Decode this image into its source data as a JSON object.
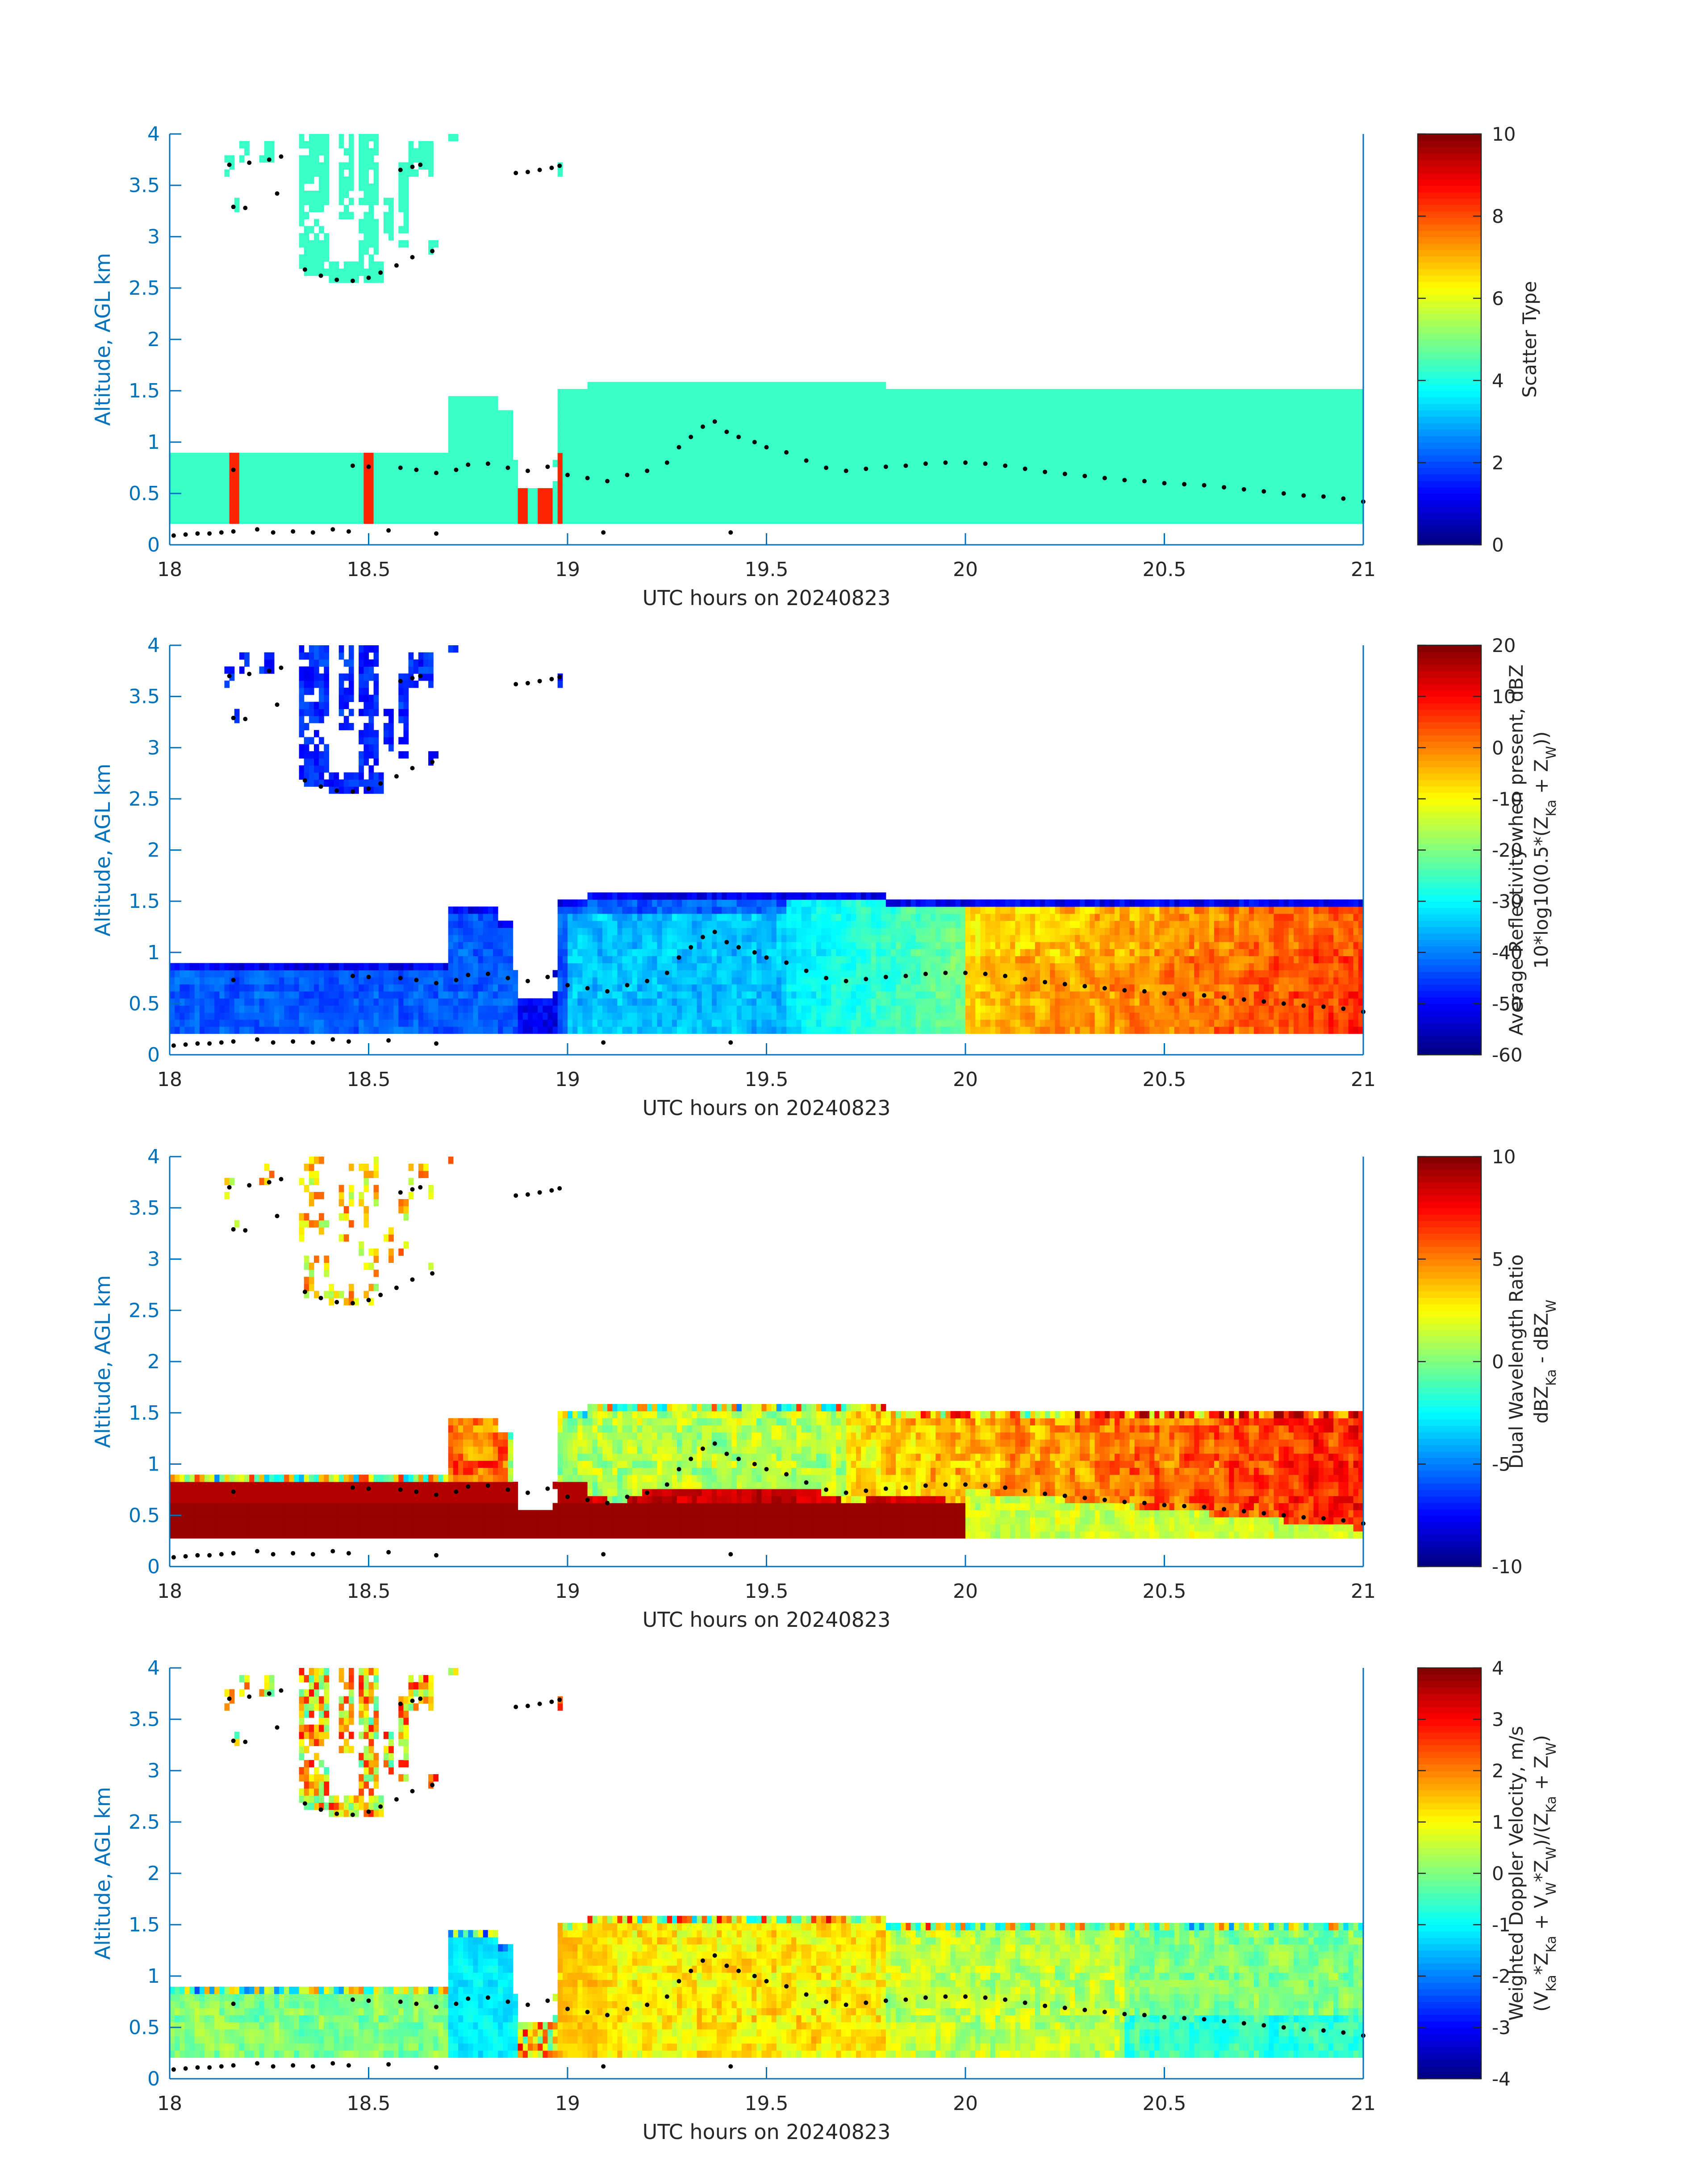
{
  "chart_data": [
    {
      "type": "heatmap",
      "ylabel": "Altitude, AGL km",
      "xlabel": "UTC hours on 20240823",
      "xlim": [
        18,
        21
      ],
      "ylim": [
        0,
        4
      ],
      "xticks": [
        "18",
        "18.5",
        "19",
        "19.5",
        "20",
        "20.5",
        "21"
      ],
      "yticks": [
        "0",
        "0.5",
        "1",
        "1.5",
        "2",
        "2.5",
        "3",
        "3.5",
        "4"
      ],
      "colorbar": {
        "label_lines": [
          "Scatter Type"
        ],
        "lim": [
          0,
          10
        ],
        "ticks": [
          "0",
          "2",
          "4",
          "6",
          "8",
          "10"
        ]
      },
      "colormap": "jet",
      "field": "scatter_type"
    },
    {
      "type": "heatmap",
      "ylabel": "Altitude, AGL km",
      "xlabel": "UTC hours on 20240823",
      "xlim": [
        18,
        21
      ],
      "ylim": [
        0,
        4
      ],
      "xticks": [
        "18",
        "18.5",
        "19",
        "19.5",
        "20",
        "20.5",
        "21"
      ],
      "yticks": [
        "0",
        "0.5",
        "1",
        "1.5",
        "2",
        "2.5",
        "3",
        "3.5",
        "4"
      ],
      "colorbar": {
        "label_lines": [
          "Average Reflectivity when present, dBZ",
          "10*log10(0.5*(Z_Ka + Z_W))"
        ],
        "lim": [
          -60,
          20
        ],
        "ticks": [
          "-60",
          "-50",
          "-40",
          "-30",
          "-20",
          "-10",
          "0",
          "10",
          "20"
        ]
      },
      "colormap": "jet",
      "field": "reflectivity"
    },
    {
      "type": "heatmap",
      "ylabel": "Altitude, AGL km",
      "xlabel": "UTC hours on 20240823",
      "xlim": [
        18,
        21
      ],
      "ylim": [
        0,
        4
      ],
      "xticks": [
        "18",
        "18.5",
        "19",
        "19.5",
        "20",
        "20.5",
        "21"
      ],
      "yticks": [
        "0",
        "0.5",
        "1",
        "1.5",
        "2",
        "2.5",
        "3",
        "3.5",
        "4"
      ],
      "colorbar": {
        "label_lines": [
          "Dual Wavelength Ratio",
          "dBZ_Ka - dBZ_W"
        ],
        "lim": [
          -10,
          10
        ],
        "ticks": [
          "-10",
          "-5",
          "0",
          "5",
          "10"
        ]
      },
      "colormap": "jet",
      "field": "dwr"
    },
    {
      "type": "heatmap",
      "ylabel": "Altitude, AGL km",
      "xlabel": "UTC hours on 20240823",
      "xlim": [
        18,
        21
      ],
      "ylim": [
        0,
        4
      ],
      "xticks": [
        "18",
        "18.5",
        "19",
        "19.5",
        "20",
        "20.5",
        "21"
      ],
      "yticks": [
        "0",
        "0.5",
        "1",
        "1.5",
        "2",
        "2.5",
        "3",
        "3.5",
        "4"
      ],
      "colorbar": {
        "label_lines": [
          "Weighted Doppler Velocity, m/s",
          "(V_Ka*Z_Ka + V_W*Z_W)/(Z_Ka + Z_W)"
        ],
        "lim": [
          -4,
          4
        ],
        "ticks": [
          "-4",
          "-3",
          "-2",
          "-1",
          "0",
          "1",
          "2",
          "3",
          "4"
        ]
      },
      "colormap": "jet",
      "field": "velocity"
    }
  ],
  "cloud_base_dots": [
    [
      18.01,
      0.09
    ],
    [
      18.04,
      0.1
    ],
    [
      18.07,
      0.11
    ],
    [
      18.1,
      0.11
    ],
    [
      18.13,
      0.12
    ],
    [
      18.16,
      0.13
    ],
    [
      18.22,
      0.15
    ],
    [
      18.26,
      0.12
    ],
    [
      18.31,
      0.13
    ],
    [
      18.36,
      0.12
    ],
    [
      18.41,
      0.15
    ],
    [
      18.45,
      0.13
    ],
    [
      18.55,
      0.14
    ],
    [
      18.67,
      0.11
    ],
    [
      19.09,
      0.12
    ],
    [
      19.41,
      0.12
    ],
    [
      18.16,
      0.73
    ],
    [
      18.46,
      0.77
    ],
    [
      18.5,
      0.76
    ],
    [
      18.58,
      0.75
    ],
    [
      18.62,
      0.73
    ],
    [
      18.67,
      0.7
    ],
    [
      18.72,
      0.73
    ],
    [
      18.75,
      0.78
    ],
    [
      18.8,
      0.79
    ],
    [
      18.85,
      0.75
    ],
    [
      18.9,
      0.72
    ],
    [
      18.95,
      0.76
    ],
    [
      19.0,
      0.68
    ],
    [
      19.05,
      0.65
    ],
    [
      19.1,
      0.62
    ],
    [
      19.15,
      0.68
    ],
    [
      19.2,
      0.72
    ],
    [
      19.25,
      0.8
    ],
    [
      19.28,
      0.95
    ],
    [
      19.31,
      1.05
    ],
    [
      19.34,
      1.15
    ],
    [
      19.37,
      1.2
    ],
    [
      19.4,
      1.1
    ],
    [
      19.43,
      1.05
    ],
    [
      19.47,
      1.0
    ],
    [
      19.5,
      0.95
    ],
    [
      19.55,
      0.9
    ],
    [
      19.6,
      0.82
    ],
    [
      19.65,
      0.75
    ],
    [
      19.7,
      0.72
    ],
    [
      19.75,
      0.74
    ],
    [
      19.8,
      0.76
    ],
    [
      19.85,
      0.77
    ],
    [
      19.9,
      0.79
    ],
    [
      19.95,
      0.8
    ],
    [
      20.0,
      0.8
    ],
    [
      20.05,
      0.79
    ],
    [
      20.1,
      0.77
    ],
    [
      20.15,
      0.74
    ],
    [
      20.2,
      0.71
    ],
    [
      20.25,
      0.69
    ],
    [
      20.3,
      0.67
    ],
    [
      20.35,
      0.65
    ],
    [
      20.4,
      0.63
    ],
    [
      20.45,
      0.62
    ],
    [
      20.5,
      0.6
    ],
    [
      20.55,
      0.59
    ],
    [
      20.6,
      0.58
    ],
    [
      20.65,
      0.56
    ],
    [
      20.7,
      0.54
    ],
    [
      20.75,
      0.52
    ],
    [
      20.8,
      0.5
    ],
    [
      20.85,
      0.48
    ],
    [
      20.9,
      0.47
    ],
    [
      20.95,
      0.45
    ],
    [
      21.0,
      0.42
    ],
    [
      18.15,
      3.7
    ],
    [
      18.2,
      3.72
    ],
    [
      18.25,
      3.75
    ],
    [
      18.28,
      3.78
    ],
    [
      18.16,
      3.29
    ],
    [
      18.19,
      3.28
    ],
    [
      18.27,
      3.42
    ],
    [
      18.34,
      2.68
    ],
    [
      18.38,
      2.62
    ],
    [
      18.42,
      2.58
    ],
    [
      18.46,
      2.57
    ],
    [
      18.5,
      2.6
    ],
    [
      18.53,
      2.65
    ],
    [
      18.57,
      2.72
    ],
    [
      18.61,
      2.8
    ],
    [
      18.66,
      2.86
    ],
    [
      18.58,
      3.65
    ],
    [
      18.61,
      3.68
    ],
    [
      18.63,
      3.7
    ],
    [
      18.87,
      3.62
    ],
    [
      18.9,
      3.63
    ],
    [
      18.93,
      3.65
    ],
    [
      18.96,
      3.67
    ],
    [
      18.98,
      3.69
    ]
  ]
}
